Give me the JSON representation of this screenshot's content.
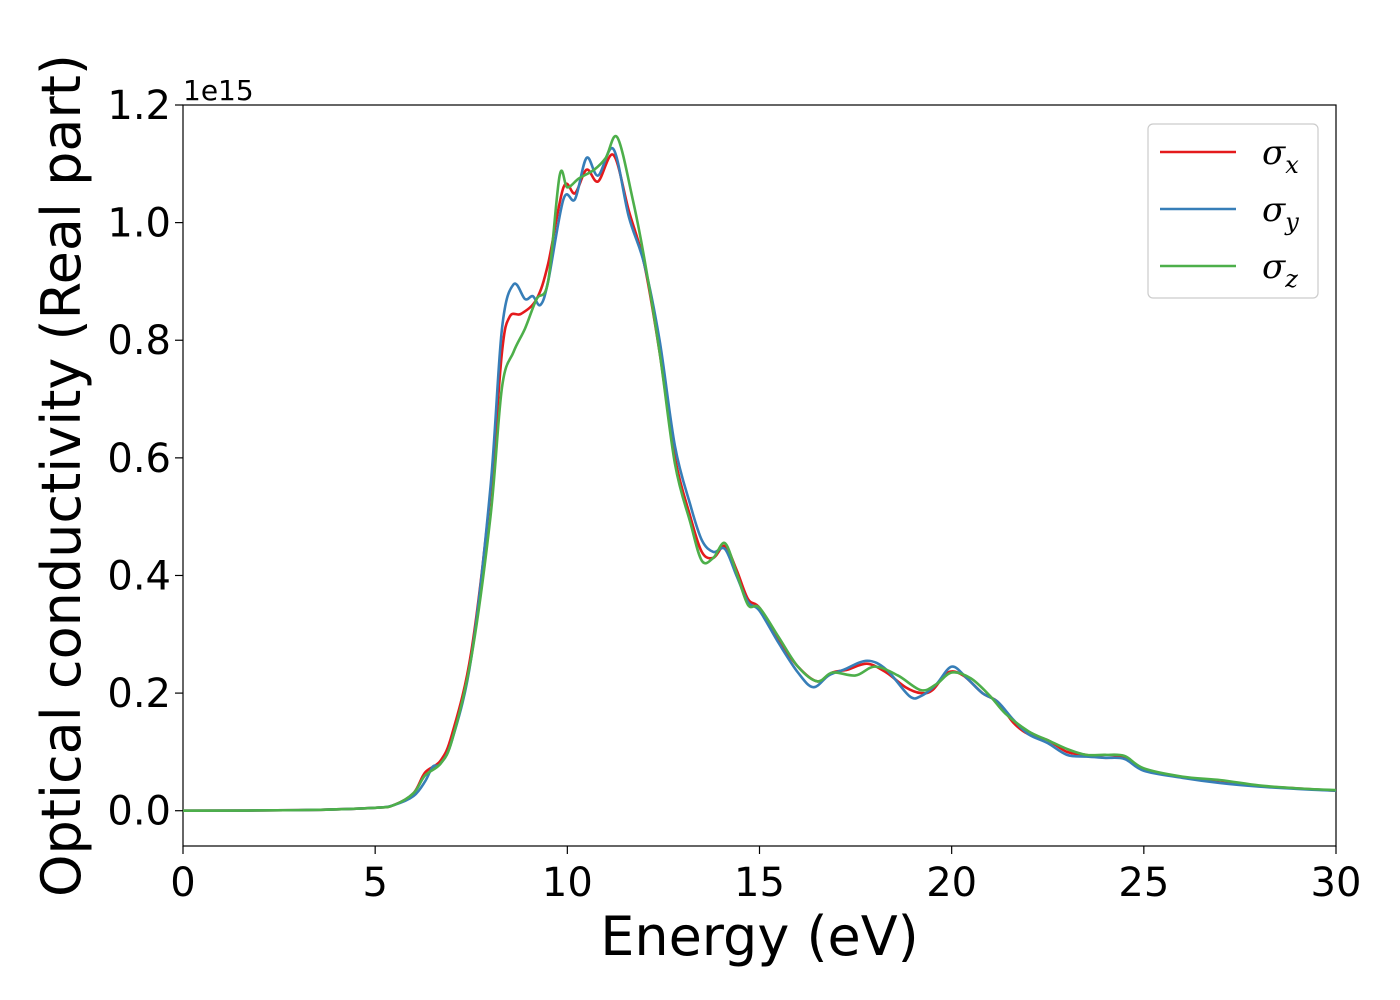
{
  "chart_data": {
    "type": "line",
    "title": "",
    "xlabel": "Energy (eV)",
    "ylabel": "Optical conductivity (Real part)",
    "y_offset_label": "1e15",
    "xlim": [
      0,
      30
    ],
    "ylim": [
      -0.06,
      1.2
    ],
    "x_ticks": [
      "0",
      "5",
      "10",
      "15",
      "20",
      "25",
      "30"
    ],
    "y_ticks": [
      "0.0",
      "0.2",
      "0.4",
      "0.6",
      "0.8",
      "1.0",
      "1.2"
    ],
    "grid": false,
    "legend_position": "top-right",
    "series": [
      {
        "name": "σx",
        "symbol": "σ",
        "subscript": "x",
        "color": "#e41a1c",
        "points": [
          [
            0,
            0
          ],
          [
            3,
            0.001
          ],
          [
            5,
            0.005
          ],
          [
            5.5,
            0.01
          ],
          [
            6.0,
            0.03
          ],
          [
            6.3,
            0.065
          ],
          [
            6.7,
            0.085
          ],
          [
            7.0,
            0.13
          ],
          [
            7.5,
            0.27
          ],
          [
            8.0,
            0.54
          ],
          [
            8.3,
            0.78
          ],
          [
            8.5,
            0.84
          ],
          [
            8.8,
            0.845
          ],
          [
            9.2,
            0.87
          ],
          [
            9.5,
            0.93
          ],
          [
            9.9,
            1.06
          ],
          [
            10.2,
            1.05
          ],
          [
            10.5,
            1.09
          ],
          [
            10.8,
            1.07
          ],
          [
            11.2,
            1.115
          ],
          [
            11.6,
            1.02
          ],
          [
            12.0,
            0.93
          ],
          [
            12.4,
            0.78
          ],
          [
            12.8,
            0.6
          ],
          [
            13.2,
            0.5
          ],
          [
            13.5,
            0.44
          ],
          [
            13.8,
            0.43
          ],
          [
            14.1,
            0.45
          ],
          [
            14.4,
            0.41
          ],
          [
            14.7,
            0.36
          ],
          [
            15.0,
            0.345
          ],
          [
            15.5,
            0.29
          ],
          [
            16.0,
            0.245
          ],
          [
            16.5,
            0.22
          ],
          [
            16.9,
            0.235
          ],
          [
            17.3,
            0.24
          ],
          [
            17.8,
            0.25
          ],
          [
            18.3,
            0.235
          ],
          [
            18.8,
            0.21
          ],
          [
            19.2,
            0.2
          ],
          [
            19.5,
            0.205
          ],
          [
            19.9,
            0.235
          ],
          [
            20.3,
            0.23
          ],
          [
            20.8,
            0.2
          ],
          [
            21.2,
            0.185
          ],
          [
            21.6,
            0.15
          ],
          [
            22.0,
            0.13
          ],
          [
            22.5,
            0.12
          ],
          [
            23.0,
            0.1
          ],
          [
            23.5,
            0.095
          ],
          [
            24.0,
            0.09
          ],
          [
            24.5,
            0.09
          ],
          [
            25.0,
            0.07
          ],
          [
            26.0,
            0.057
          ],
          [
            27.0,
            0.048
          ],
          [
            28.0,
            0.042
          ],
          [
            29.0,
            0.038
          ],
          [
            30.0,
            0.034
          ]
        ]
      },
      {
        "name": "σy",
        "symbol": "σ",
        "subscript": "y",
        "color": "#377eb8",
        "points": [
          [
            0,
            0
          ],
          [
            3,
            0.001
          ],
          [
            5,
            0.005
          ],
          [
            5.5,
            0.01
          ],
          [
            6.0,
            0.025
          ],
          [
            6.3,
            0.05
          ],
          [
            6.5,
            0.075
          ],
          [
            6.7,
            0.08
          ],
          [
            7.0,
            0.12
          ],
          [
            7.5,
            0.26
          ],
          [
            8.0,
            0.55
          ],
          [
            8.3,
            0.82
          ],
          [
            8.6,
            0.895
          ],
          [
            8.9,
            0.87
          ],
          [
            9.1,
            0.875
          ],
          [
            9.3,
            0.86
          ],
          [
            9.5,
            0.9
          ],
          [
            9.9,
            1.04
          ],
          [
            10.2,
            1.04
          ],
          [
            10.5,
            1.11
          ],
          [
            10.8,
            1.08
          ],
          [
            11.2,
            1.125
          ],
          [
            11.6,
            1.01
          ],
          [
            12.0,
            0.93
          ],
          [
            12.4,
            0.8
          ],
          [
            12.8,
            0.62
          ],
          [
            13.2,
            0.52
          ],
          [
            13.5,
            0.46
          ],
          [
            13.8,
            0.44
          ],
          [
            14.1,
            0.445
          ],
          [
            14.4,
            0.4
          ],
          [
            14.7,
            0.355
          ],
          [
            15.0,
            0.34
          ],
          [
            15.5,
            0.285
          ],
          [
            16.0,
            0.235
          ],
          [
            16.4,
            0.21
          ],
          [
            16.8,
            0.23
          ],
          [
            17.2,
            0.24
          ],
          [
            17.8,
            0.255
          ],
          [
            18.3,
            0.24
          ],
          [
            18.9,
            0.195
          ],
          [
            19.2,
            0.195
          ],
          [
            19.6,
            0.215
          ],
          [
            20.0,
            0.245
          ],
          [
            20.4,
            0.225
          ],
          [
            20.8,
            0.2
          ],
          [
            21.2,
            0.185
          ],
          [
            21.6,
            0.155
          ],
          [
            22.0,
            0.13
          ],
          [
            22.5,
            0.115
          ],
          [
            23.0,
            0.095
          ],
          [
            23.5,
            0.092
          ],
          [
            24.0,
            0.09
          ],
          [
            24.5,
            0.088
          ],
          [
            25.0,
            0.068
          ],
          [
            26.0,
            0.056
          ],
          [
            27.0,
            0.047
          ],
          [
            28.0,
            0.041
          ],
          [
            29.0,
            0.037
          ],
          [
            30.0,
            0.034
          ]
        ]
      },
      {
        "name": "σz",
        "symbol": "σ",
        "subscript": "z",
        "color": "#4daf4a",
        "points": [
          [
            0,
            0
          ],
          [
            3,
            0.001
          ],
          [
            5,
            0.005
          ],
          [
            5.5,
            0.01
          ],
          [
            6.0,
            0.03
          ],
          [
            6.3,
            0.06
          ],
          [
            6.7,
            0.08
          ],
          [
            7.0,
            0.12
          ],
          [
            7.5,
            0.26
          ],
          [
            8.0,
            0.5
          ],
          [
            8.3,
            0.72
          ],
          [
            8.6,
            0.78
          ],
          [
            8.9,
            0.82
          ],
          [
            9.2,
            0.87
          ],
          [
            9.5,
            0.9
          ],
          [
            9.8,
            1.08
          ],
          [
            10.0,
            1.06
          ],
          [
            10.3,
            1.075
          ],
          [
            10.7,
            1.09
          ],
          [
            11.0,
            1.11
          ],
          [
            11.3,
            1.145
          ],
          [
            11.7,
            1.04
          ],
          [
            12.0,
            0.94
          ],
          [
            12.4,
            0.78
          ],
          [
            12.8,
            0.59
          ],
          [
            13.2,
            0.49
          ],
          [
            13.5,
            0.425
          ],
          [
            13.8,
            0.43
          ],
          [
            14.1,
            0.455
          ],
          [
            14.4,
            0.405
          ],
          [
            14.7,
            0.35
          ],
          [
            15.0,
            0.345
          ],
          [
            15.5,
            0.295
          ],
          [
            16.0,
            0.245
          ],
          [
            16.5,
            0.22
          ],
          [
            16.9,
            0.235
          ],
          [
            17.5,
            0.23
          ],
          [
            18.0,
            0.245
          ],
          [
            18.6,
            0.23
          ],
          [
            19.2,
            0.205
          ],
          [
            19.6,
            0.215
          ],
          [
            20.0,
            0.235
          ],
          [
            20.5,
            0.225
          ],
          [
            21.0,
            0.195
          ],
          [
            21.4,
            0.165
          ],
          [
            22.0,
            0.135
          ],
          [
            22.5,
            0.12
          ],
          [
            23.0,
            0.105
          ],
          [
            23.5,
            0.095
          ],
          [
            24.0,
            0.095
          ],
          [
            24.5,
            0.093
          ],
          [
            25.0,
            0.072
          ],
          [
            26.0,
            0.058
          ],
          [
            27.0,
            0.052
          ],
          [
            28.0,
            0.043
          ],
          [
            29.0,
            0.038
          ],
          [
            30.0,
            0.035
          ]
        ]
      }
    ]
  }
}
